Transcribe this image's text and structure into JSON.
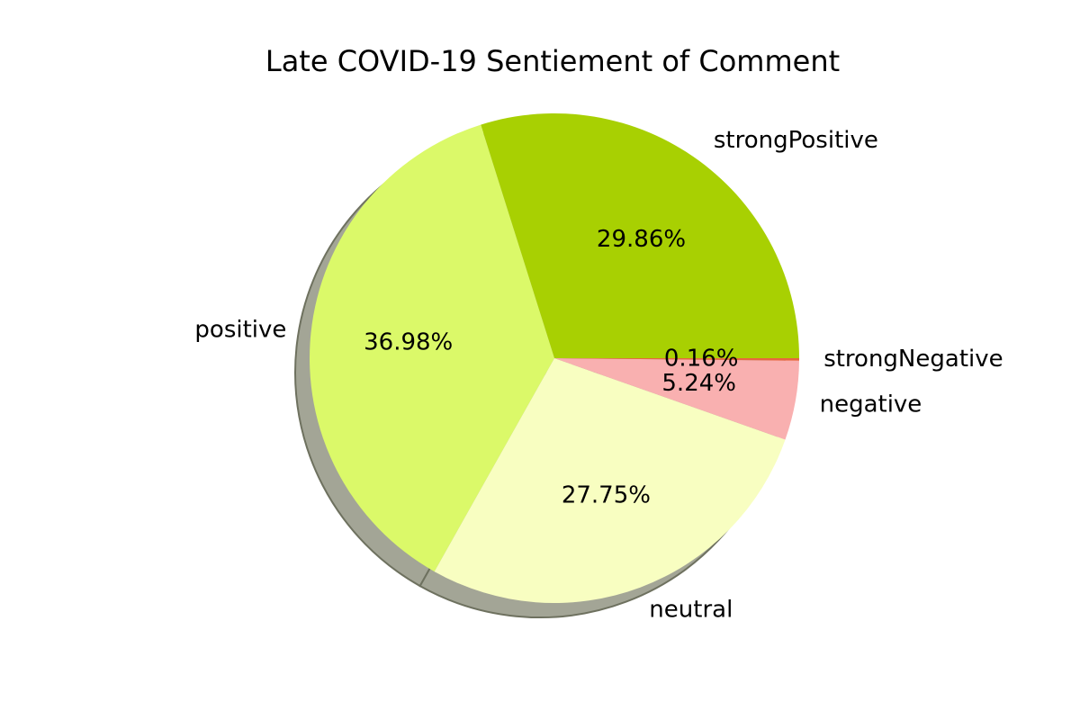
{
  "chart_data": {
    "type": "pie",
    "title": "Late COVID-19 Sentiement of Comment",
    "shadow": true,
    "counterclock": true,
    "slices": [
      {
        "label": "strongPositive",
        "value": 29.86,
        "pct_text": "29.86%",
        "color": "#a8d002"
      },
      {
        "label": "positive",
        "value": 36.98,
        "pct_text": "36.98%",
        "color": "#dbf969"
      },
      {
        "label": "neutral",
        "value": 27.75,
        "pct_text": "27.75%",
        "color": "#f8fec1"
      },
      {
        "label": "negative",
        "value": 5.24,
        "pct_text": "5.24%",
        "color": "#f9b0b0"
      },
      {
        "label": "strongNegative",
        "value": 0.16,
        "pct_text": "0.16%",
        "color": "#e8663e"
      }
    ]
  }
}
